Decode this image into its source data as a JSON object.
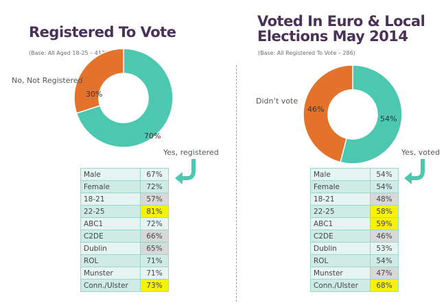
{
  "chart_data": [
    {
      "type": "pie",
      "title": "Registered To Vote",
      "subtitle": "(Base: All Aged 18-25 – 412)",
      "slices": [
        {
          "label": "Yes, registered",
          "value": 70,
          "value_label": "70%",
          "color": "#4cc8b1"
        },
        {
          "label": "No, Not Registered",
          "value": 30,
          "value_label": "30%",
          "color": "#e5722a"
        }
      ],
      "table": {
        "rows": [
          {
            "label": "Male",
            "value": "67%",
            "highlight": "none"
          },
          {
            "label": "Female",
            "value": "72%",
            "highlight": "none"
          },
          {
            "label": "18-21",
            "value": "57%",
            "highlight": "gray"
          },
          {
            "label": "22-25",
            "value": "81%",
            "highlight": "yellow"
          },
          {
            "label": "ABC1",
            "value": "72%",
            "highlight": "none"
          },
          {
            "label": "C2DE",
            "value": "66%",
            "highlight": "gray"
          },
          {
            "label": "Dublin",
            "value": "65%",
            "highlight": "gray"
          },
          {
            "label": "ROL",
            "value": "71%",
            "highlight": "none"
          },
          {
            "label": "Munster",
            "value": "71%",
            "highlight": "none"
          },
          {
            "label": "Conn./Ulster",
            "value": "73%",
            "highlight": "yellow"
          }
        ]
      }
    },
    {
      "type": "pie",
      "title": "Voted In Euro & Local Elections May 2014",
      "title_lines": [
        "Voted In Euro & Local",
        "Elections May 2014"
      ],
      "subtitle": "(Base: All Registered To Vote – 286)",
      "slices": [
        {
          "label": "Yes, voted",
          "value": 54,
          "value_label": "54%",
          "color": "#4cc8b1"
        },
        {
          "label": "Didn’t vote",
          "value": 46,
          "value_label": "46%",
          "color": "#e5722a"
        }
      ],
      "table": {
        "rows": [
          {
            "label": "Male",
            "value": "54%",
            "highlight": "none"
          },
          {
            "label": "Female",
            "value": "54%",
            "highlight": "none"
          },
          {
            "label": "18-21",
            "value": "48%",
            "highlight": "gray"
          },
          {
            "label": "22-25",
            "value": "58%",
            "highlight": "yellow"
          },
          {
            "label": "ABC1",
            "value": "59%",
            "highlight": "yellow"
          },
          {
            "label": "C2DE",
            "value": "46%",
            "highlight": "gray"
          },
          {
            "label": "Dublin",
            "value": "53%",
            "highlight": "none"
          },
          {
            "label": "ROL",
            "value": "54%",
            "highlight": "none"
          },
          {
            "label": "Munster",
            "value": "47%",
            "highlight": "gray"
          },
          {
            "label": "Conn./Ulster",
            "value": "68%",
            "highlight": "yellow"
          }
        ]
      }
    }
  ]
}
